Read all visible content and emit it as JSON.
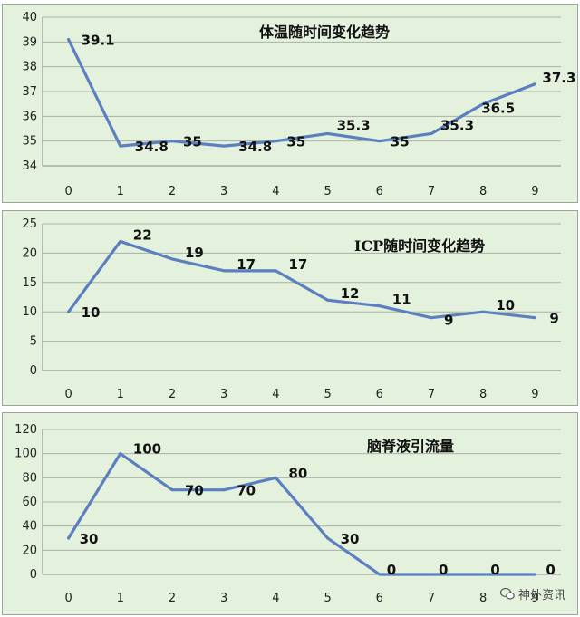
{
  "chart_data": [
    {
      "type": "line",
      "title": "体温随时间变化趋势",
      "categories": [
        "0",
        "1",
        "2",
        "3",
        "4",
        "5",
        "6",
        "7",
        "8",
        "9"
      ],
      "values": [
        39.1,
        34.8,
        35,
        34.8,
        35,
        35.3,
        35,
        35.3,
        36.5,
        37.3
      ],
      "data_labels": [
        "39.1",
        "34.8",
        "35",
        "34.8",
        "35",
        "35.3",
        "35",
        "35.3",
        "36.5",
        "37.3"
      ],
      "ylim": [
        34,
        40
      ],
      "yticks": [
        "34",
        "35",
        "36",
        "37",
        "38",
        "39",
        "40"
      ],
      "grid": true,
      "color": "#5b7fbf"
    },
    {
      "type": "line",
      "title": "ICP随时间变化趋势",
      "categories": [
        "0",
        "1",
        "2",
        "3",
        "4",
        "5",
        "6",
        "7",
        "8",
        "9"
      ],
      "values": [
        10,
        22,
        19,
        17,
        17,
        12,
        11,
        9,
        10,
        9
      ],
      "data_labels": [
        "10",
        "22",
        "19",
        "17",
        "17",
        "12",
        "11",
        "9",
        "10",
        "9"
      ],
      "ylim": [
        0,
        25
      ],
      "yticks": [
        "0",
        "5",
        "10",
        "15",
        "20",
        "25"
      ],
      "grid": true,
      "color": "#5b7fbf"
    },
    {
      "type": "line",
      "title": "脑脊液引流量",
      "categories": [
        "0",
        "1",
        "2",
        "3",
        "4",
        "5",
        "6",
        "7",
        "8",
        "9"
      ],
      "values": [
        30,
        100,
        70,
        70,
        80,
        30,
        0,
        0,
        0,
        0
      ],
      "data_labels": [
        "30",
        "100",
        "70",
        "70",
        "80",
        "30",
        "0",
        "0",
        "0",
        "0"
      ],
      "ylim": [
        0,
        120
      ],
      "yticks": [
        "0",
        "20",
        "40",
        "60",
        "80",
        "100",
        "120"
      ],
      "grid": true,
      "color": "#5b7fbf"
    }
  ],
  "watermark": {
    "icon": "wechat-icon",
    "text": "神外资讯"
  }
}
